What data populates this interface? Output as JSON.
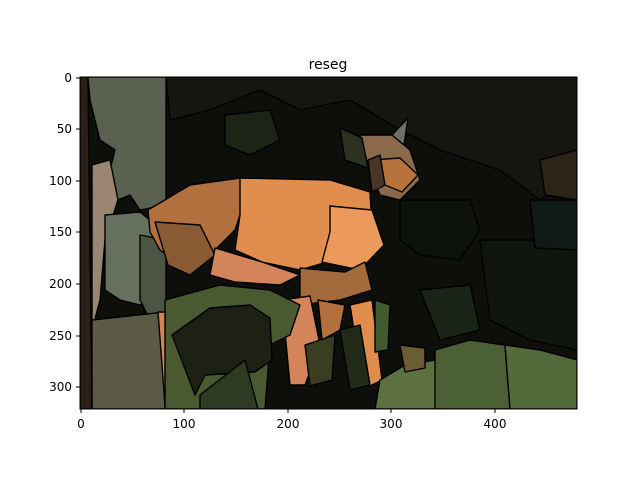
{
  "figure": {
    "title": "reseg",
    "x_ticks": [
      "0",
      "100",
      "200",
      "300",
      "400"
    ],
    "y_ticks": [
      "0",
      "50",
      "100",
      "150",
      "200",
      "250",
      "300"
    ],
    "colors": {
      "background": "#0e0f0b",
      "deer_light": "#e08d4e",
      "deer_bright": "#ec9a5c",
      "deer_mid": "#b2703e",
      "deer_dark": "#8a5a33",
      "tree_trunk_a": "#5b6150",
      "tree_trunk_b": "#9a8570",
      "tree_trunk_c": "#66705e",
      "foliage_a": "#4a5a30",
      "foliage_b": "#5d7040",
      "foliage_c": "#2e3a22"
    }
  }
}
